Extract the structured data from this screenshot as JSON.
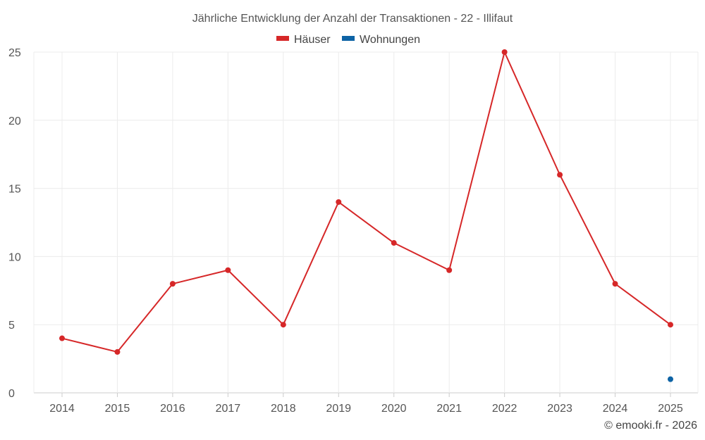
{
  "chart_data": {
    "type": "line",
    "title": "Jährliche Entwicklung der Anzahl der Transaktionen - 22 - Illifaut",
    "categories": [
      "2014",
      "2015",
      "2016",
      "2017",
      "2018",
      "2019",
      "2020",
      "2021",
      "2022",
      "2023",
      "2024",
      "2025"
    ],
    "series": [
      {
        "name": "Häuser",
        "color": "#d62728",
        "values": [
          4,
          3,
          8,
          9,
          5,
          14,
          11,
          9,
          25,
          16,
          8,
          5
        ]
      },
      {
        "name": "Wohnungen",
        "color": "#0d63a5",
        "values": [
          null,
          null,
          null,
          null,
          null,
          null,
          null,
          null,
          null,
          null,
          null,
          1
        ]
      }
    ],
    "y_ticks": [
      "0",
      "5",
      "10",
      "15",
      "20",
      "25"
    ],
    "ylim": [
      0,
      25
    ],
    "xlabel": "",
    "ylabel": "",
    "grid": true,
    "legend_position": "top-center"
  },
  "credit": "© emooki.fr - 2026"
}
